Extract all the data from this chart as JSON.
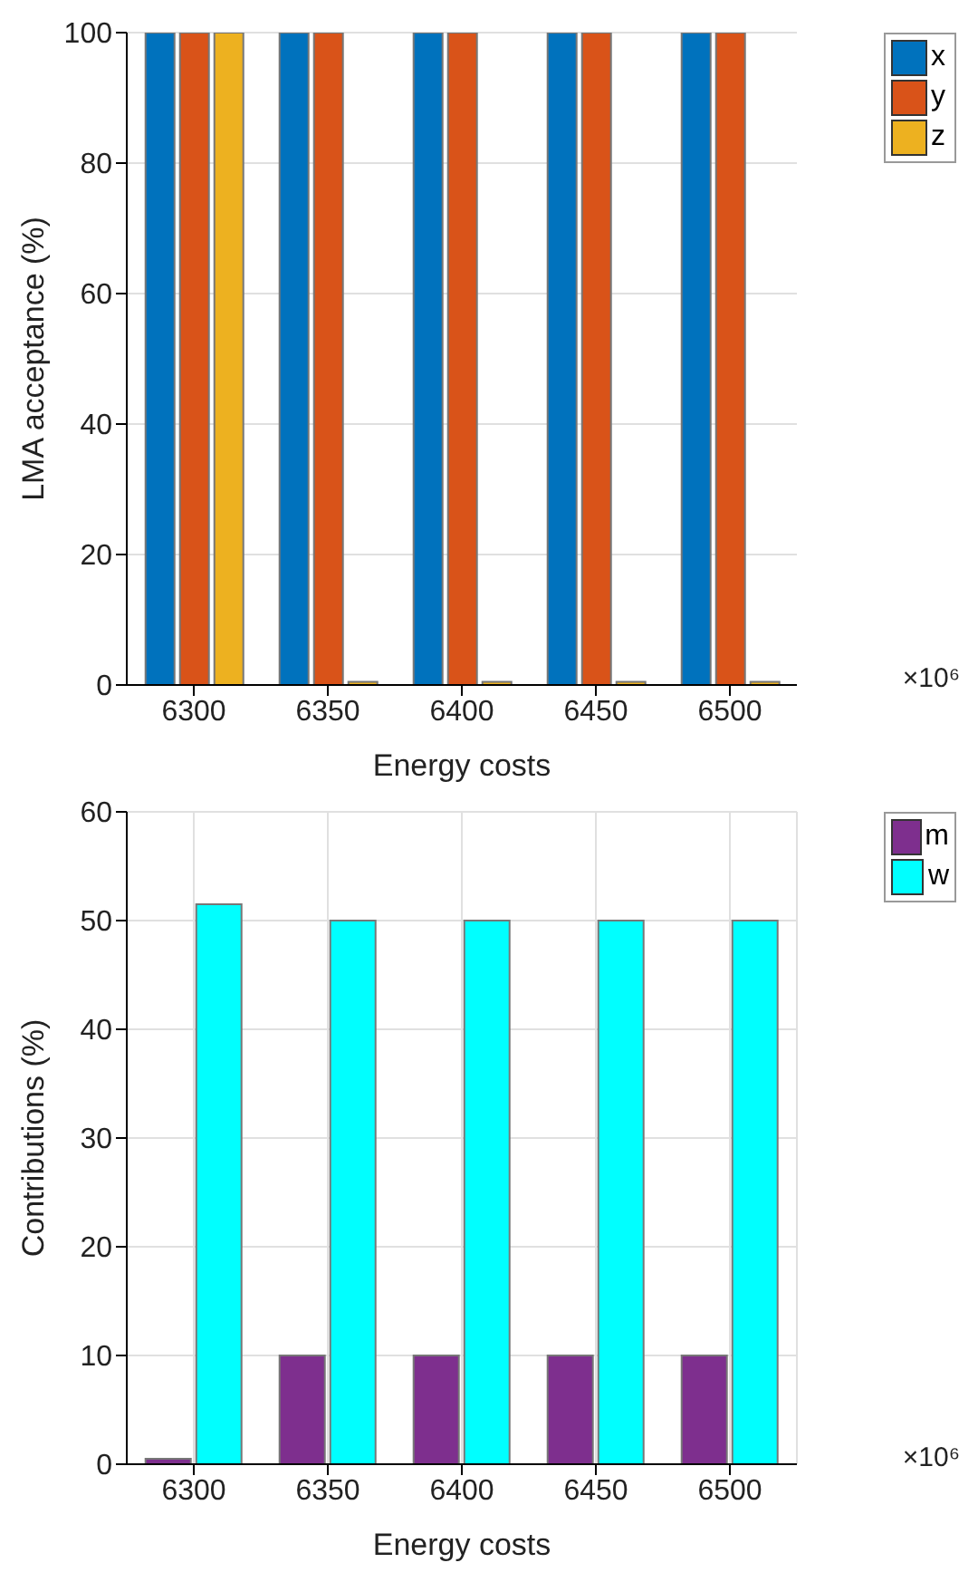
{
  "chart_data": [
    {
      "type": "bar",
      "categories": [
        "6300",
        "6350",
        "6400",
        "6450",
        "6500"
      ],
      "xlabel": "Energy costs",
      "ylabel": "LMA acceptance (%)",
      "annotations": [
        "×10⁶"
      ],
      "ylim": [
        0,
        100
      ],
      "yticks": [
        0,
        20,
        40,
        60,
        80,
        100
      ],
      "grid": "y",
      "legend": "top right",
      "series": [
        {
          "name": "x",
          "color": "#0072bd",
          "values": [
            100,
            100,
            100,
            100,
            100
          ]
        },
        {
          "name": "y",
          "color": "#d95319",
          "values": [
            100,
            100,
            100,
            100,
            100
          ]
        },
        {
          "name": "z",
          "color": "#edb120",
          "values": [
            100,
            0.5,
            0.5,
            0.5,
            0.5
          ]
        }
      ]
    },
    {
      "type": "bar",
      "categories": [
        "6300",
        "6350",
        "6400",
        "6450",
        "6500"
      ],
      "xlabel": "Energy costs",
      "ylabel": "Contributions (%)",
      "annotations": [
        "×10⁶"
      ],
      "ylim": [
        0,
        60
      ],
      "yticks": [
        0,
        10,
        20,
        30,
        40,
        50,
        60
      ],
      "grid": true,
      "legend": "top right",
      "series": [
        {
          "name": "m",
          "color": "#7e2f8e",
          "values": [
            0.5,
            10,
            10,
            10,
            10
          ]
        },
        {
          "name": "w",
          "color": "#00ffff",
          "values": [
            51.5,
            50,
            50,
            50,
            50
          ]
        }
      ]
    }
  ]
}
